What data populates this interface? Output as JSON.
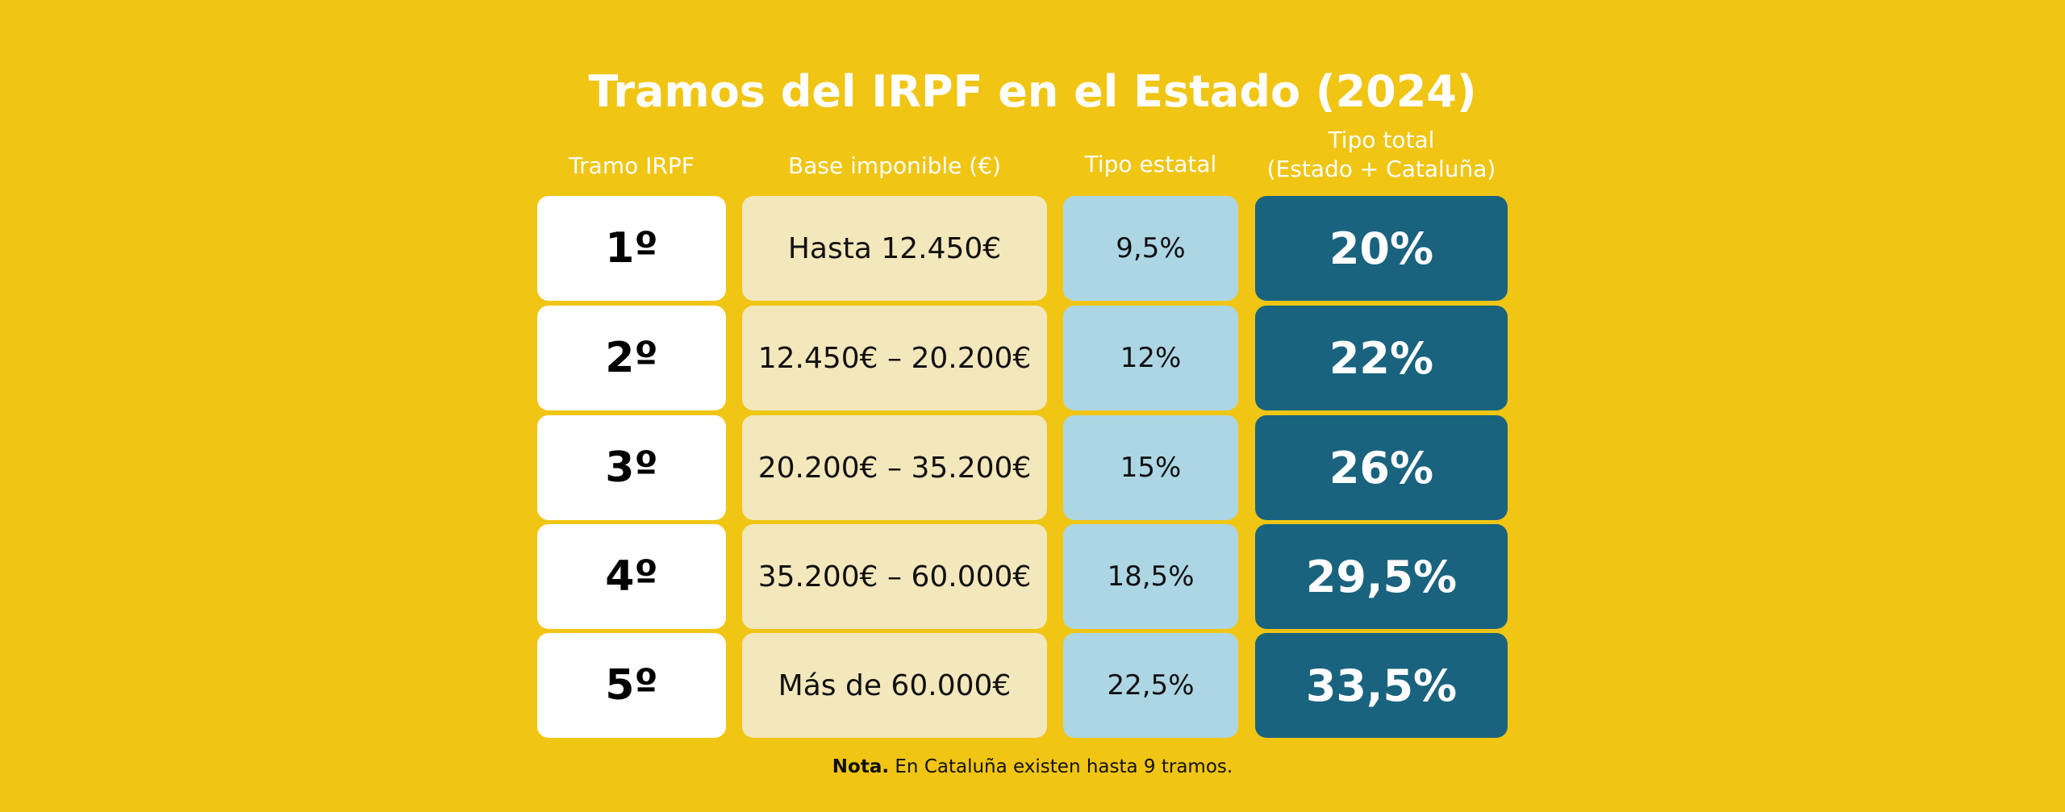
{
  "title": "Tramos del IRPF en el Estado (2024)",
  "headers": {
    "tramo": "Tramo IRPF",
    "base": "Base imponible (€)",
    "estatal": "Tipo estatal",
    "total_line1": "Tipo total",
    "total_line2": "(Estado + Cataluña)"
  },
  "rows": [
    {
      "tramo": "1º",
      "base": "Hasta 12.450€",
      "estatal": "9,5%",
      "total": "20%"
    },
    {
      "tramo": "2º",
      "base": "12.450€ – 20.200€",
      "estatal": "12%",
      "total": "22%"
    },
    {
      "tramo": "3º",
      "base": "20.200€ – 35.200€",
      "estatal": "15%",
      "total": "26%"
    },
    {
      "tramo": "4º",
      "base": "35.200€ – 60.000€",
      "estatal": "18,5%",
      "total": "29,5%"
    },
    {
      "tramo": "5º",
      "base": "Más de 60.000€",
      "estatal": "22,5%",
      "total": "33,5%"
    }
  ],
  "note": {
    "label": "Nota.",
    "text": " En Cataluña existen hasta 9 tramos."
  },
  "colors": {
    "background": "#F0C514",
    "tramo": "#FFFFFF",
    "base": "#F3E7BC",
    "estatal": "#ADD6E5",
    "total": "#1A637E"
  }
}
